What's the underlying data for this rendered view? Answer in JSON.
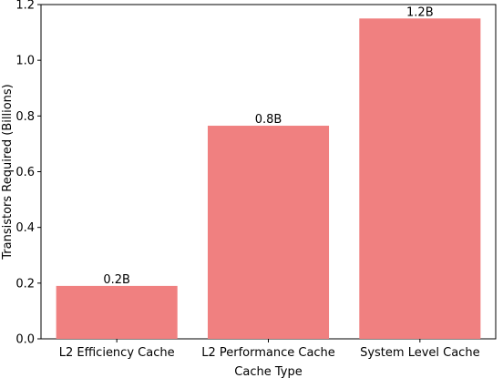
{
  "chart_data": {
    "type": "bar",
    "categories": [
      "L2 Efficiency Cache",
      "L2 Performance Cache",
      "System Level Cache"
    ],
    "values": [
      0.19,
      0.765,
      1.15
    ],
    "data_labels": [
      "0.2B",
      "0.8B",
      "1.2B"
    ],
    "title": "",
    "xlabel": "Cache Type",
    "ylabel": "Transistors Required (Billions)",
    "ylim": [
      0,
      1.2
    ],
    "yticks": [
      0.0,
      0.2,
      0.4,
      0.6,
      0.8,
      1.0,
      1.2
    ],
    "ytick_labels": [
      "0.0",
      "0.2",
      "0.4",
      "0.6",
      "0.8",
      "1.0",
      "1.2"
    ],
    "bar_color": "#f08080",
    "grid": false,
    "legend": "none"
  }
}
